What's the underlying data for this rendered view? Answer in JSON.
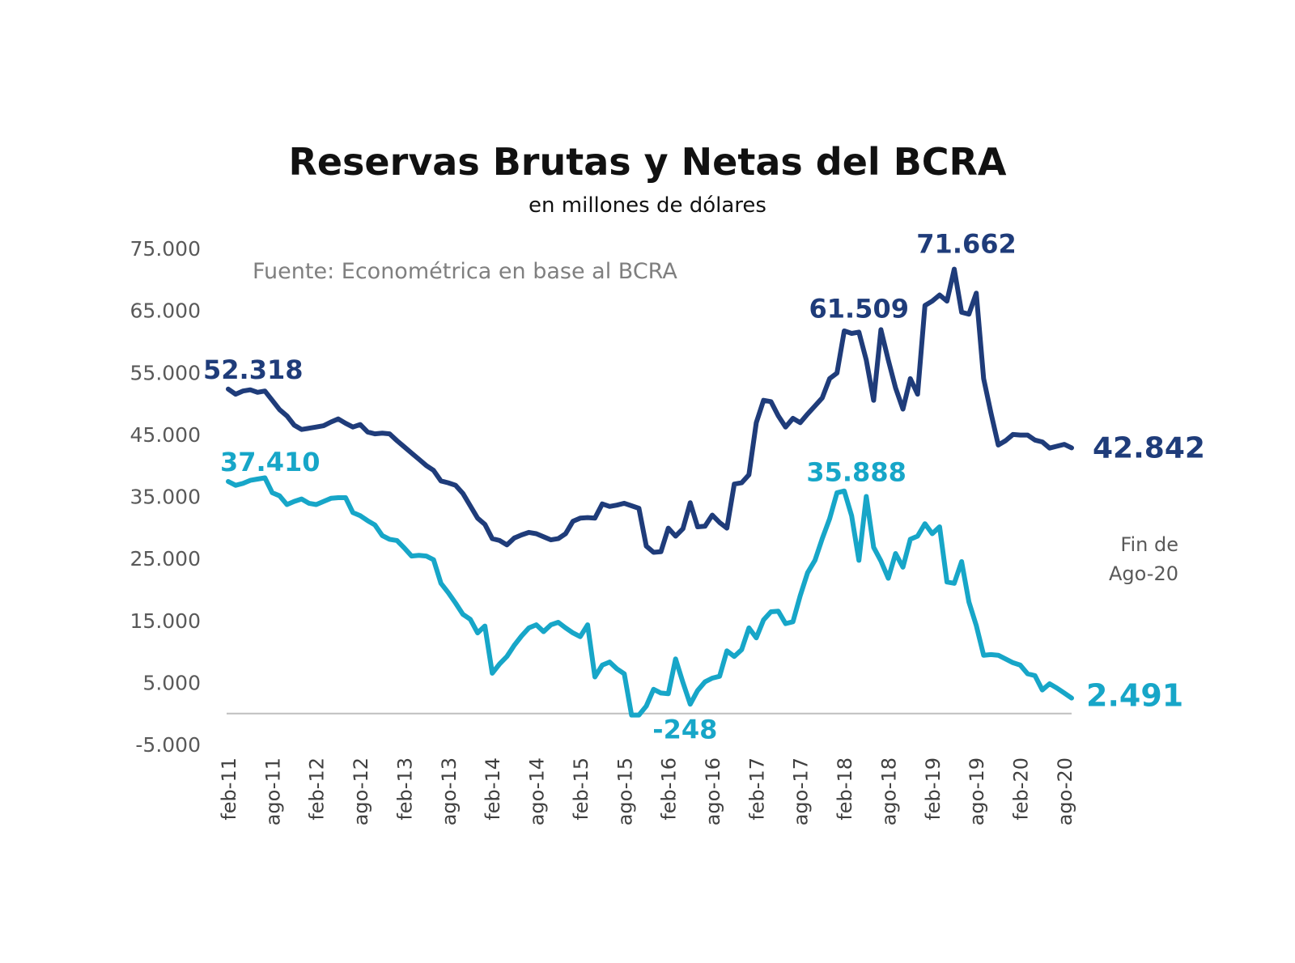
{
  "chart_data": {
    "type": "line",
    "title": "Reservas Brutas y Netas del BCRA",
    "subtitle": "en millones de dólares",
    "source": "Fuente: Econométrica en base al BCRA",
    "note": [
      "Fin de",
      "Ago-20"
    ],
    "ylim": [
      -5000,
      75000
    ],
    "yticks": [
      "75.000",
      "65.000",
      "55.000",
      "45.000",
      "35.000",
      "25.000",
      "15.000",
      "5.000",
      "-5.000"
    ],
    "ytick_values": [
      75000,
      65000,
      55000,
      45000,
      35000,
      25000,
      15000,
      5000,
      -5000
    ],
    "xticks": [
      "feb-11",
      "ago-11",
      "feb-12",
      "ago-12",
      "feb-13",
      "ago-13",
      "feb-14",
      "ago-14",
      "feb-15",
      "ago-15",
      "feb-16",
      "ago-16",
      "feb-17",
      "ago-17",
      "feb-18",
      "ago-18",
      "feb-19",
      "ago-19",
      "feb-20",
      "ago-20"
    ],
    "x_start": "2011-02",
    "grid": false,
    "colors": {
      "brutas": "#1f3c7a",
      "netas": "#17a6c8",
      "zero_line": "#bfbfbf"
    },
    "series": [
      {
        "key": "brutas",
        "values": [
          52318,
          51500,
          52000,
          52200,
          51800,
          52000,
          50500,
          49000,
          48000,
          46500,
          45800,
          46000,
          46200,
          46400,
          47000,
          47500,
          46800,
          46200,
          46600,
          45400,
          45100,
          45200,
          45100,
          44000,
          43000,
          42000,
          41000,
          40000,
          39200,
          37500,
          37200,
          36800,
          35500,
          33500,
          31500,
          30500,
          28200,
          27900,
          27200,
          28300,
          28800,
          29200,
          29000,
          28500,
          28000,
          28200,
          29000,
          31000,
          31500,
          31600,
          31500,
          33800,
          33400,
          33600,
          33900,
          33500,
          33100,
          27000,
          26000,
          26100,
          29900,
          28600,
          29800,
          34000,
          30100,
          30200,
          32000,
          30800,
          29900,
          37000,
          37200,
          38500,
          46900,
          50500,
          50300,
          48000,
          46200,
          47600,
          46900,
          48300,
          49600,
          50900,
          54000,
          54900,
          61700,
          61300,
          61509,
          57000,
          50500,
          61900,
          57000,
          52500,
          49100,
          54000,
          51500,
          65800,
          66500,
          67500,
          66500,
          71662,
          64700,
          64400,
          67800,
          54000,
          48500,
          43300,
          44000,
          45000,
          44900,
          44900,
          44100,
          43800,
          42800,
          43100,
          43400,
          42842
        ]
      },
      {
        "key": "netas",
        "values": [
          37410,
          36800,
          37100,
          37600,
          37800,
          38000,
          35600,
          35100,
          33700,
          34200,
          34600,
          33900,
          33700,
          34200,
          34700,
          34800,
          34800,
          32400,
          31900,
          31100,
          30400,
          28700,
          28100,
          27900,
          26700,
          25400,
          25500,
          25400,
          24800,
          21000,
          19500,
          17800,
          16000,
          15200,
          13000,
          14100,
          6500,
          8000,
          9200,
          11000,
          12500,
          13800,
          14300,
          13200,
          14300,
          14700,
          13800,
          13000,
          12400,
          14300,
          5900,
          7800,
          8300,
          7200,
          6400,
          -248,
          -248,
          1200,
          3900,
          3300,
          3200,
          8800,
          5000,
          1500,
          3700,
          5100,
          5700,
          6000,
          10100,
          9200,
          10300,
          13800,
          12200,
          15100,
          16400,
          16500,
          14500,
          14800,
          19000,
          22700,
          24700,
          28200,
          31400,
          35600,
          35888,
          31900,
          24700,
          35000,
          26800,
          24600,
          21800,
          25800,
          23600,
          28100,
          28600,
          30600,
          29000,
          30100,
          21200,
          21000,
          24500,
          18000,
          14200,
          9400,
          9500,
          9400,
          8800,
          8200,
          7800,
          6400,
          6100,
          3800,
          4800,
          4100,
          3300,
          2491
        ]
      }
    ],
    "annotations": [
      {
        "text": "52.318",
        "series": "brutas",
        "index": 0
      },
      {
        "text": "61.509",
        "series": "brutas",
        "index": 86
      },
      {
        "text": "71.662",
        "series": "brutas",
        "index": 99
      },
      {
        "text": "42.842",
        "series": "brutas",
        "index": 115
      },
      {
        "text": "37.410",
        "series": "netas",
        "index": 0
      },
      {
        "text": "35.888",
        "series": "netas",
        "index": 84
      },
      {
        "text": "-248",
        "series": "netas",
        "index": 55
      },
      {
        "text": "2.491",
        "series": "netas",
        "index": 115
      }
    ]
  }
}
